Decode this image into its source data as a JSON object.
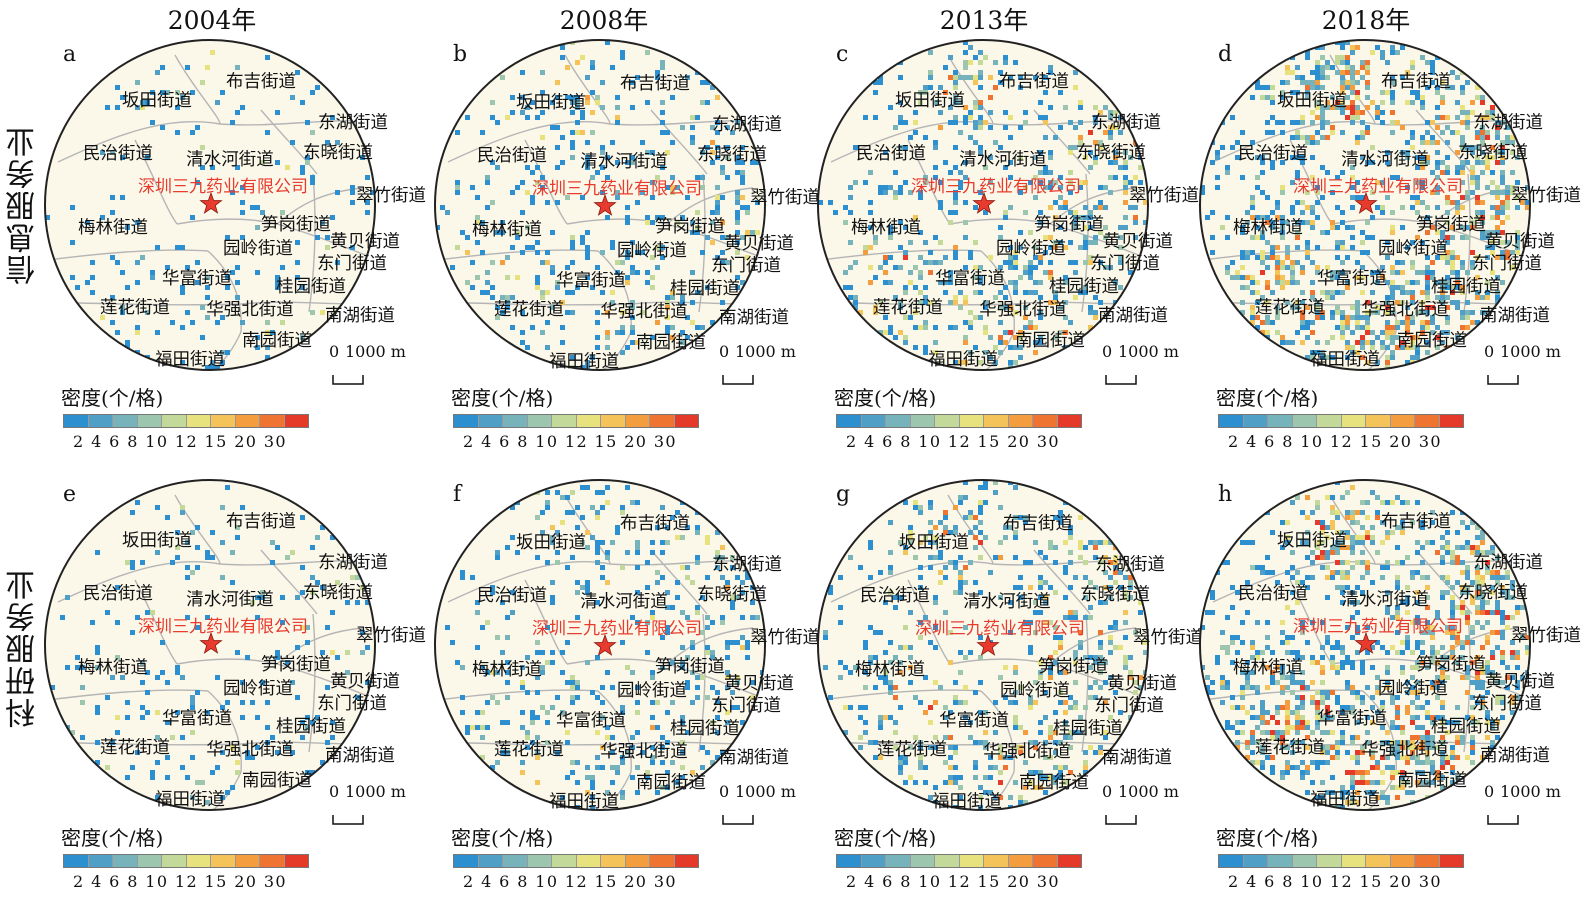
{
  "years": [
    "2004年",
    "2008年",
    "2013年",
    "2018年"
  ],
  "row_labels": [
    "信息服务业",
    "科研服务业"
  ],
  "panels": [
    {
      "letter": "a",
      "level": 1,
      "offset": [
        0,
        0
      ]
    },
    {
      "letter": "b",
      "level": 2,
      "offset": [
        4,
        2
      ]
    },
    {
      "letter": "c",
      "level": 3,
      "offset": [
        0,
        0
      ]
    },
    {
      "letter": "d",
      "level": 4,
      "offset": [
        0,
        0
      ]
    },
    {
      "letter": "e",
      "level": 1,
      "offset": [
        0,
        0
      ]
    },
    {
      "letter": "f",
      "level": 2,
      "offset": [
        4,
        2
      ]
    },
    {
      "letter": "g",
      "level": 3,
      "offset": [
        4,
        2
      ]
    },
    {
      "letter": "h",
      "level": 4,
      "offset": [
        0,
        0
      ]
    }
  ],
  "company_name": "深圳三九药业有限公司",
  "districts": [
    "坂田街道",
    "布吉街道",
    "东湖街道",
    "民治街道",
    "清水河街道",
    "东晓街道",
    "翠竹街道",
    "梅林街道",
    "笋岗街道",
    "黄贝街道",
    "园岭街道",
    "东门街道",
    "华富街道",
    "桂园街道",
    "莲花街道",
    "华强北街道",
    "南湖街道",
    "南园街道",
    "福田街道"
  ],
  "scale_bar": {
    "zero": "0",
    "value": "1000 m"
  },
  "legend": {
    "title": "密度(个/格)",
    "ticks": [
      "2",
      "4",
      "6",
      "8",
      "10",
      "12",
      "15",
      "20",
      "30"
    ],
    "colors": [
      "#2c8fd0",
      "#4f9fc7",
      "#77b3bb",
      "#9cc6ad",
      "#c2d99a",
      "#e8e27e",
      "#f4c45a",
      "#f49d3e",
      "#ef7432",
      "#e53a2a"
    ]
  },
  "colors": {
    "map_fill": "#fbf8ea",
    "border": "#b5b5b5",
    "outline": "#222222",
    "company": "#e83b2d"
  }
}
